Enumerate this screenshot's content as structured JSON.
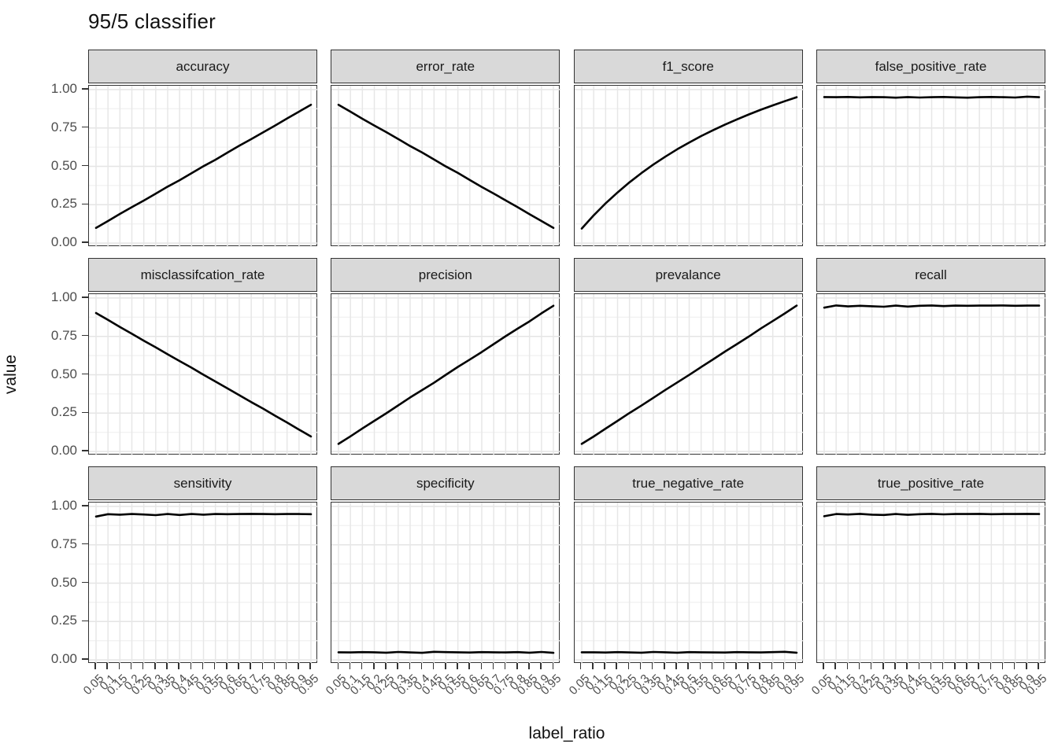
{
  "chart_data": {
    "type": "line",
    "title": "95/5 classifier",
    "xlabel": "label_ratio",
    "ylabel": "value",
    "facet_columns": 4,
    "grid": "on",
    "legend": "none",
    "ylim": [
      0,
      1
    ],
    "y_ticks": [
      {
        "label": "1.00",
        "value": 1.0
      },
      {
        "label": "0.75",
        "value": 0.75
      },
      {
        "label": "0.50",
        "value": 0.5
      },
      {
        "label": "0.25",
        "value": 0.25
      },
      {
        "label": "0.00",
        "value": 0.0
      }
    ],
    "y_minor_step": 0.125,
    "x": [
      0.05,
      0.1,
      0.15,
      0.2,
      0.25,
      0.3,
      0.35,
      0.4,
      0.45,
      0.5,
      0.55,
      0.6,
      0.65,
      0.7,
      0.75,
      0.8,
      0.85,
      0.9,
      0.95
    ],
    "x_tick_labels": [
      "0.05",
      "0.1",
      "0.15",
      "0.2",
      "0.25",
      "0.3",
      "0.35",
      "0.4",
      "0.45",
      "0.5",
      "0.55",
      "0.6",
      "0.65",
      "0.7",
      "0.75",
      "0.8",
      "0.85",
      "0.9",
      "0.95"
    ],
    "series": [
      {
        "name": "accuracy",
        "values": [
          0.099,
          0.144,
          0.19,
          0.234,
          0.277,
          0.322,
          0.368,
          0.41,
          0.455,
          0.501,
          0.543,
          0.589,
          0.634,
          0.677,
          0.722,
          0.766,
          0.812,
          0.856,
          0.901
        ]
      },
      {
        "name": "error_rate",
        "values": [
          0.901,
          0.856,
          0.81,
          0.766,
          0.723,
          0.678,
          0.632,
          0.59,
          0.545,
          0.499,
          0.457,
          0.411,
          0.366,
          0.323,
          0.278,
          0.234,
          0.188,
          0.144,
          0.099
        ]
      },
      {
        "name": "f1_score",
        "values": [
          0.095,
          0.181,
          0.259,
          0.33,
          0.396,
          0.456,
          0.512,
          0.563,
          0.611,
          0.655,
          0.697,
          0.735,
          0.772,
          0.806,
          0.838,
          0.869,
          0.897,
          0.924,
          0.95
        ]
      },
      {
        "name": "false_positive_rate",
        "values": [
          0.951,
          0.95,
          0.952,
          0.949,
          0.951,
          0.95,
          0.947,
          0.951,
          0.948,
          0.95,
          0.952,
          0.949,
          0.947,
          0.95,
          0.952,
          0.95,
          0.948,
          0.954,
          0.95
        ]
      },
      {
        "name": "misclassifcation_rate",
        "values": [
          0.902,
          0.857,
          0.811,
          0.767,
          0.722,
          0.679,
          0.633,
          0.589,
          0.546,
          0.5,
          0.456,
          0.412,
          0.367,
          0.322,
          0.279,
          0.233,
          0.189,
          0.143,
          0.098
        ]
      },
      {
        "name": "precision",
        "values": [
          0.05,
          0.099,
          0.15,
          0.2,
          0.249,
          0.3,
          0.352,
          0.4,
          0.448,
          0.5,
          0.551,
          0.599,
          0.648,
          0.7,
          0.751,
          0.8,
          0.848,
          0.9,
          0.949
        ]
      },
      {
        "name": "prevalance",
        "values": [
          0.05,
          0.098,
          0.149,
          0.2,
          0.251,
          0.299,
          0.35,
          0.401,
          0.45,
          0.499,
          0.55,
          0.6,
          0.651,
          0.7,
          0.749,
          0.801,
          0.85,
          0.899,
          0.95
        ]
      },
      {
        "name": "recall",
        "values": [
          0.937,
          0.951,
          0.945,
          0.949,
          0.946,
          0.943,
          0.95,
          0.944,
          0.949,
          0.951,
          0.947,
          0.95,
          0.949,
          0.95,
          0.95,
          0.951,
          0.949,
          0.95,
          0.95
        ]
      },
      {
        "name": "sensitivity",
        "values": [
          0.934,
          0.949,
          0.946,
          0.95,
          0.947,
          0.943,
          0.95,
          0.944,
          0.95,
          0.946,
          0.95,
          0.949,
          0.95,
          0.951,
          0.95,
          0.949,
          0.95,
          0.95,
          0.949
        ]
      },
      {
        "name": "specificity",
        "values": [
          0.05,
          0.049,
          0.051,
          0.05,
          0.047,
          0.052,
          0.049,
          0.046,
          0.053,
          0.051,
          0.05,
          0.048,
          0.051,
          0.05,
          0.049,
          0.051,
          0.047,
          0.052,
          0.046
        ]
      },
      {
        "name": "true_negative_rate",
        "values": [
          0.05,
          0.05,
          0.048,
          0.051,
          0.049,
          0.047,
          0.052,
          0.05,
          0.047,
          0.051,
          0.05,
          0.049,
          0.048,
          0.051,
          0.05,
          0.049,
          0.051,
          0.053,
          0.047
        ]
      },
      {
        "name": "true_positive_rate",
        "values": [
          0.936,
          0.95,
          0.947,
          0.951,
          0.946,
          0.944,
          0.95,
          0.945,
          0.949,
          0.951,
          0.948,
          0.95,
          0.95,
          0.951,
          0.949,
          0.95,
          0.95,
          0.951,
          0.95
        ]
      }
    ],
    "colors": {
      "line": "#000000",
      "strip_fill": "#d9d9d9",
      "panel_border": "#333333",
      "grid_major": "#e4e4e4",
      "grid_minor": "#f0f0f0",
      "grid_vertical": "#e7e7e7",
      "tick_text": "#4d4d4d",
      "tick_mark": "#333333"
    }
  }
}
